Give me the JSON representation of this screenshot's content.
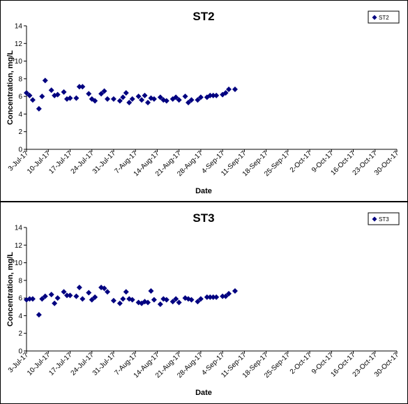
{
  "chart_data": [
    {
      "type": "scatter",
      "title": "ST2",
      "xlabel": "Date",
      "ylabel": "Concentration, mg/L",
      "ylim": [
        0,
        14
      ],
      "yticks": [
        "0",
        "2",
        "4",
        "6",
        "8",
        "10",
        "12",
        "14"
      ],
      "xlim": [
        "2017-07-03",
        "2017-10-30"
      ],
      "xticks": [
        "3-Jul-17",
        "10-Jul-17",
        "17-Jul-17",
        "24-Jul-17",
        "31-Jul-17",
        "7-Aug-17",
        "14-Aug-17",
        "21-Aug-17",
        "28-Aug-17",
        "4-Sep-17",
        "11-Sep-17",
        "18-Sep-17",
        "25-Sep-17",
        "2-Oct-17",
        "9-Oct-17",
        "16-Oct-17",
        "23-Oct-17",
        "30-Oct-17"
      ],
      "grid": false,
      "legend_position": "top-right",
      "series": [
        {
          "name": "ST2",
          "color": "#000080",
          "marker": "diamond",
          "points": [
            [
              "2017-07-03",
              6.4
            ],
            [
              "2017-07-04",
              6.1
            ],
            [
              "2017-07-05",
              5.6
            ],
            [
              "2017-07-07",
              4.6
            ],
            [
              "2017-07-08",
              6.0
            ],
            [
              "2017-07-09",
              7.8
            ],
            [
              "2017-07-11",
              6.7
            ],
            [
              "2017-07-12",
              6.1
            ],
            [
              "2017-07-13",
              6.2
            ],
            [
              "2017-07-15",
              6.5
            ],
            [
              "2017-07-16",
              5.7
            ],
            [
              "2017-07-17",
              5.8
            ],
            [
              "2017-07-19",
              5.8
            ],
            [
              "2017-07-20",
              7.1
            ],
            [
              "2017-07-21",
              7.1
            ],
            [
              "2017-07-23",
              6.3
            ],
            [
              "2017-07-24",
              5.7
            ],
            [
              "2017-07-25",
              5.5
            ],
            [
              "2017-07-27",
              6.3
            ],
            [
              "2017-07-28",
              6.6
            ],
            [
              "2017-07-29",
              5.7
            ],
            [
              "2017-07-31",
              5.7
            ],
            [
              "2017-08-02",
              5.5
            ],
            [
              "2017-08-03",
              5.9
            ],
            [
              "2017-08-04",
              6.4
            ],
            [
              "2017-08-05",
              5.3
            ],
            [
              "2017-08-06",
              5.7
            ],
            [
              "2017-08-08",
              6.0
            ],
            [
              "2017-08-09",
              5.6
            ],
            [
              "2017-08-10",
              6.1
            ],
            [
              "2017-08-11",
              5.3
            ],
            [
              "2017-08-12",
              5.8
            ],
            [
              "2017-08-13",
              5.7
            ],
            [
              "2017-08-15",
              5.9
            ],
            [
              "2017-08-16",
              5.6
            ],
            [
              "2017-08-17",
              5.5
            ],
            [
              "2017-08-19",
              5.7
            ],
            [
              "2017-08-20",
              5.9
            ],
            [
              "2017-08-21",
              5.6
            ],
            [
              "2017-08-23",
              6.0
            ],
            [
              "2017-08-24",
              5.3
            ],
            [
              "2017-08-25",
              5.6
            ],
            [
              "2017-08-27",
              5.6
            ],
            [
              "2017-08-28",
              5.9
            ],
            [
              "2017-08-30",
              5.9
            ],
            [
              "2017-08-31",
              6.1
            ],
            [
              "2017-09-01",
              6.1
            ],
            [
              "2017-09-02",
              6.1
            ],
            [
              "2017-09-04",
              6.2
            ],
            [
              "2017-09-05",
              6.4
            ],
            [
              "2017-09-06",
              6.8
            ],
            [
              "2017-09-08",
              6.8
            ]
          ]
        }
      ]
    },
    {
      "type": "scatter",
      "title": "ST3",
      "xlabel": "Date",
      "ylabel": "Concentration, mg/L",
      "ylim": [
        0,
        14
      ],
      "yticks": [
        "0",
        "2",
        "4",
        "6",
        "8",
        "10",
        "12",
        "14"
      ],
      "xlim": [
        "2017-07-03",
        "2017-10-30"
      ],
      "xticks": [
        "3-Jul-17",
        "10-Jul-17",
        "17-Jul-17",
        "24-Jul-17",
        "31-Jul-17",
        "7-Aug-17",
        "14-Aug-17",
        "21-Aug-17",
        "28-Aug-17",
        "4-Sep-17",
        "11-Sep-17",
        "18-Sep-17",
        "25-Sep-17",
        "2-Oct-17",
        "9-Oct-17",
        "16-Oct-17",
        "23-Oct-17",
        "30-Oct-17"
      ],
      "grid": false,
      "legend_position": "top-right",
      "series": [
        {
          "name": "ST3",
          "color": "#000080",
          "marker": "diamond",
          "points": [
            [
              "2017-07-03",
              5.8
            ],
            [
              "2017-07-04",
              5.9
            ],
            [
              "2017-07-05",
              5.9
            ],
            [
              "2017-07-07",
              4.1
            ],
            [
              "2017-07-08",
              5.9
            ],
            [
              "2017-07-09",
              6.2
            ],
            [
              "2017-07-11",
              6.4
            ],
            [
              "2017-07-12",
              5.4
            ],
            [
              "2017-07-13",
              6.0
            ],
            [
              "2017-07-15",
              6.7
            ],
            [
              "2017-07-16",
              6.3
            ],
            [
              "2017-07-17",
              6.3
            ],
            [
              "2017-07-19",
              6.2
            ],
            [
              "2017-07-20",
              7.2
            ],
            [
              "2017-07-21",
              5.9
            ],
            [
              "2017-07-23",
              6.6
            ],
            [
              "2017-07-24",
              5.8
            ],
            [
              "2017-07-25",
              6.1
            ],
            [
              "2017-07-27",
              7.2
            ],
            [
              "2017-07-28",
              7.1
            ],
            [
              "2017-07-29",
              6.7
            ],
            [
              "2017-07-31",
              5.7
            ],
            [
              "2017-08-02",
              5.4
            ],
            [
              "2017-08-03",
              5.9
            ],
            [
              "2017-08-04",
              6.7
            ],
            [
              "2017-08-05",
              5.9
            ],
            [
              "2017-08-06",
              5.8
            ],
            [
              "2017-08-08",
              5.5
            ],
            [
              "2017-08-09",
              5.4
            ],
            [
              "2017-08-10",
              5.6
            ],
            [
              "2017-08-11",
              5.5
            ],
            [
              "2017-08-12",
              6.8
            ],
            [
              "2017-08-13",
              5.8
            ],
            [
              "2017-08-15",
              5.3
            ],
            [
              "2017-08-16",
              5.9
            ],
            [
              "2017-08-17",
              5.8
            ],
            [
              "2017-08-19",
              5.6
            ],
            [
              "2017-08-20",
              5.9
            ],
            [
              "2017-08-21",
              5.5
            ],
            [
              "2017-08-23",
              6.0
            ],
            [
              "2017-08-24",
              5.9
            ],
            [
              "2017-08-25",
              5.8
            ],
            [
              "2017-08-27",
              5.6
            ],
            [
              "2017-08-28",
              5.9
            ],
            [
              "2017-08-30",
              6.1
            ],
            [
              "2017-08-31",
              6.1
            ],
            [
              "2017-09-01",
              6.1
            ],
            [
              "2017-09-02",
              6.1
            ],
            [
              "2017-09-04",
              6.2
            ],
            [
              "2017-09-05",
              6.2
            ],
            [
              "2017-09-06",
              6.5
            ],
            [
              "2017-09-08",
              6.8
            ]
          ]
        }
      ]
    }
  ]
}
